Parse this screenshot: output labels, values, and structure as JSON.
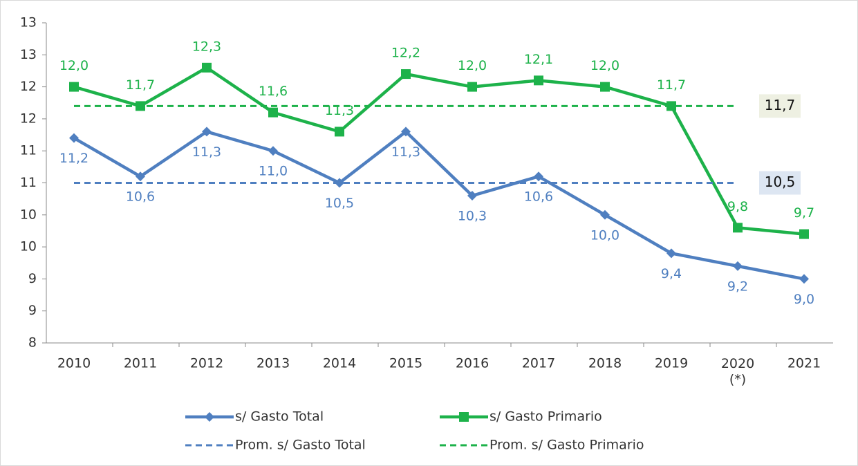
{
  "chart_data": {
    "type": "line",
    "categories": [
      "2010",
      "2011",
      "2012",
      "2013",
      "2014",
      "2015",
      "2016",
      "2017",
      "2018",
      "2019",
      "2020\n(*)",
      "2021"
    ],
    "series": [
      {
        "name": "s/ Gasto Total",
        "color": "#4f7fc0",
        "marker": "diamond",
        "values": [
          11.2,
          10.6,
          11.3,
          11.0,
          10.5,
          11.3,
          10.3,
          10.6,
          10.0,
          9.4,
          9.2,
          9.0
        ],
        "value_labels": [
          "11,2",
          "10,6",
          "11,3",
          "11,0",
          "10,5",
          "11,3",
          "10,3",
          "10,6",
          "10,0",
          "9,4",
          "9,2",
          "9,0"
        ]
      },
      {
        "name": "s/ Gasto Primario",
        "color": "#1db24a",
        "marker": "square",
        "values": [
          12.0,
          11.7,
          12.3,
          11.6,
          11.3,
          12.2,
          12.0,
          12.1,
          12.0,
          11.7,
          9.8,
          9.7
        ],
        "value_labels": [
          "12,0",
          "11,7",
          "12,3",
          "11,6",
          "11,3",
          "12,2",
          "12,0",
          "12,1",
          "12,0",
          "11,7",
          "9,8",
          "9,7"
        ]
      },
      {
        "name": "Prom. s/ Gasto Total",
        "color": "#4f7fc0",
        "dashed": true,
        "label_bg": "#dde6f2",
        "values": [
          10.5,
          10.5,
          10.5,
          10.5,
          10.5,
          10.5,
          10.5,
          10.5,
          10.5,
          10.5,
          10.5,
          null
        ],
        "value_labels": [
          null,
          null,
          null,
          null,
          null,
          null,
          null,
          null,
          null,
          null,
          "10,5",
          null
        ]
      },
      {
        "name": "Prom. s/ Gasto Primario",
        "color": "#1db24a",
        "dashed": true,
        "label_bg": "#eef0e2",
        "values": [
          11.7,
          11.7,
          11.7,
          11.7,
          11.7,
          11.7,
          11.7,
          11.7,
          11.7,
          11.7,
          11.7,
          null
        ],
        "value_labels": [
          null,
          null,
          null,
          null,
          null,
          null,
          null,
          null,
          null,
          null,
          "11,7",
          null
        ]
      }
    ],
    "ylim": [
      8,
      13
    ],
    "yticks": [
      8,
      {
        "value": 8.5,
        "label": "9"
      },
      9,
      {
        "value": 9.5,
        "label": "10"
      },
      10,
      {
        "value": 10.5,
        "label": "11"
      },
      11,
      {
        "value": 11.5,
        "label": "12"
      },
      12,
      {
        "value": 12.5,
        "label": "13"
      },
      13
    ],
    "grid": false
  }
}
